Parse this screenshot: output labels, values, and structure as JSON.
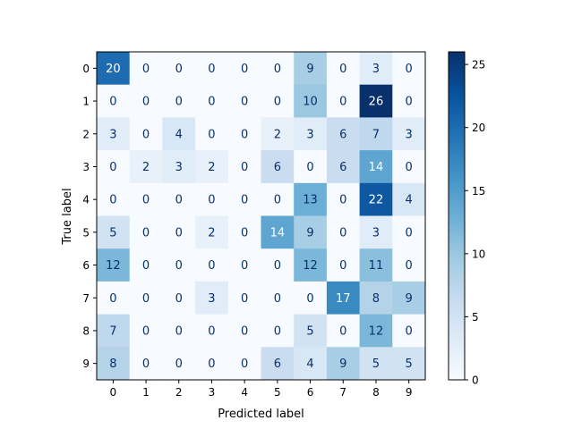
{
  "chart_data": {
    "type": "heatmap",
    "title": "",
    "xlabel": "Predicted label",
    "ylabel": "True label",
    "x_categories": [
      "0",
      "1",
      "2",
      "3",
      "4",
      "5",
      "6",
      "7",
      "8",
      "9"
    ],
    "y_categories": [
      "0",
      "1",
      "2",
      "3",
      "4",
      "5",
      "6",
      "7",
      "8",
      "9"
    ],
    "matrix": [
      [
        20,
        0,
        0,
        0,
        0,
        0,
        9,
        0,
        3,
        0
      ],
      [
        0,
        0,
        0,
        0,
        0,
        0,
        10,
        0,
        26,
        0
      ],
      [
        3,
        0,
        4,
        0,
        0,
        2,
        3,
        6,
        7,
        3
      ],
      [
        0,
        2,
        3,
        2,
        0,
        6,
        0,
        6,
        14,
        0
      ],
      [
        0,
        0,
        0,
        0,
        0,
        0,
        13,
        0,
        22,
        4
      ],
      [
        5,
        0,
        0,
        2,
        0,
        14,
        9,
        0,
        3,
        0
      ],
      [
        12,
        0,
        0,
        0,
        0,
        0,
        12,
        0,
        11,
        0
      ],
      [
        0,
        0,
        0,
        3,
        0,
        0,
        0,
        17,
        8,
        9
      ],
      [
        7,
        0,
        0,
        0,
        0,
        0,
        5,
        0,
        12,
        0
      ],
      [
        8,
        0,
        0,
        0,
        0,
        6,
        4,
        9,
        5,
        5
      ]
    ],
    "colormap": "Blues",
    "color_range": [
      0,
      26
    ],
    "colorbar_ticks": [
      0,
      5,
      10,
      15,
      20,
      25
    ],
    "grid": false
  }
}
